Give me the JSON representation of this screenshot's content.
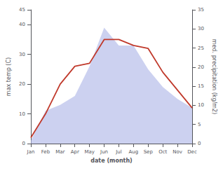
{
  "chart_data": {
    "type": "line",
    "xlabel": "date (month)",
    "ylabel": "max temp (C)",
    "y2label": "med. precipitation (kg/m2)",
    "categories": [
      "Jan",
      "Feb",
      "Mar",
      "Apr",
      "May",
      "Jun",
      "Jul",
      "Aug",
      "Sep",
      "Oct",
      "Nov",
      "Dec"
    ],
    "series": [
      {
        "type": "area",
        "color": "#b0b8e8",
        "values": [
          1,
          11,
          13,
          16,
          26,
          39,
          33,
          33,
          25,
          19,
          15,
          12
        ]
      },
      {
        "type": "line",
        "color": "#c0392b",
        "values": [
          2,
          10,
          20,
          26,
          27,
          35,
          35,
          33,
          32,
          24,
          18,
          12
        ]
      }
    ],
    "ylim": [
      0,
      45
    ],
    "yticks": [
      0,
      10,
      20,
      30,
      40
    ],
    "y2lim": [
      0,
      35
    ],
    "y2ticks": [
      0,
      5,
      10,
      15,
      20,
      25,
      30,
      35
    ],
    "grid": false
  }
}
